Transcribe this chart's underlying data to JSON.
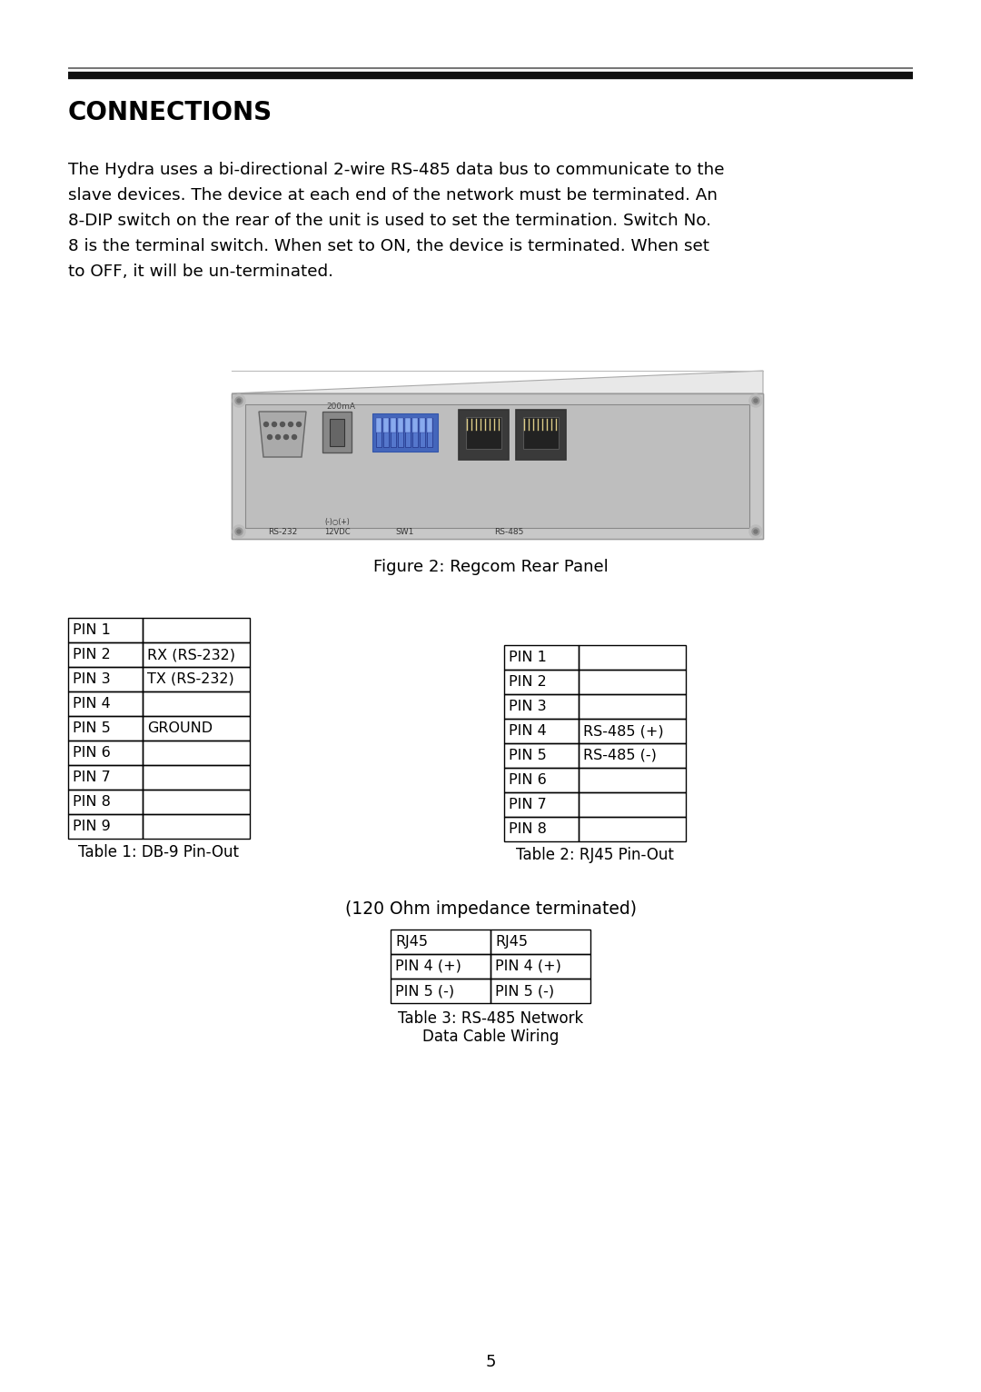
{
  "page_bg": "#ffffff",
  "section_title": "CONNECTIONS",
  "body_text_lines": [
    "The Hydra uses a bi-directional 2-wire RS-485 data bus to communicate to the",
    "slave devices. The device at each end of the network must be terminated. An",
    "8-DIP switch on the rear of the unit is used to set the termination. Switch No.",
    "8 is the terminal switch. When set to ON, the device is terminated. When set",
    "to OFF, it will be un-terminated."
  ],
  "figure_caption": "Figure 2: Regcom Rear Panel",
  "table1_title": "Table 1: DB-9 Pin-Out",
  "table1_rows": [
    [
      "PIN 1",
      ""
    ],
    [
      "PIN 2",
      "RX (RS-232)"
    ],
    [
      "PIN 3",
      "TX (RS-232)"
    ],
    [
      "PIN 4",
      ""
    ],
    [
      "PIN 5",
      "GROUND"
    ],
    [
      "PIN 6",
      ""
    ],
    [
      "PIN 7",
      ""
    ],
    [
      "PIN 8",
      ""
    ],
    [
      "PIN 9",
      ""
    ]
  ],
  "table2_title": "Table 2: RJ45 Pin-Out",
  "table2_rows": [
    [
      "PIN 1",
      ""
    ],
    [
      "PIN 2",
      ""
    ],
    [
      "PIN 3",
      ""
    ],
    [
      "PIN 4",
      "RS-485 (+)"
    ],
    [
      "PIN 5",
      "RS-485 (-)"
    ],
    [
      "PIN 6",
      ""
    ],
    [
      "PIN 7",
      ""
    ],
    [
      "PIN 8",
      ""
    ]
  ],
  "table3_subtitle": "(120 Ohm impedance terminated)",
  "table3_caption_line1": "Table 3: RS-485 Network",
  "table3_caption_line2": "Data Cable Wiring",
  "table3_rows": [
    [
      "RJ45",
      "RJ45"
    ],
    [
      "PIN 4 (+)",
      "PIN 4 (+)"
    ],
    [
      "PIN 5 (-)",
      "PIN 5 (-)"
    ]
  ],
  "page_number": "5"
}
